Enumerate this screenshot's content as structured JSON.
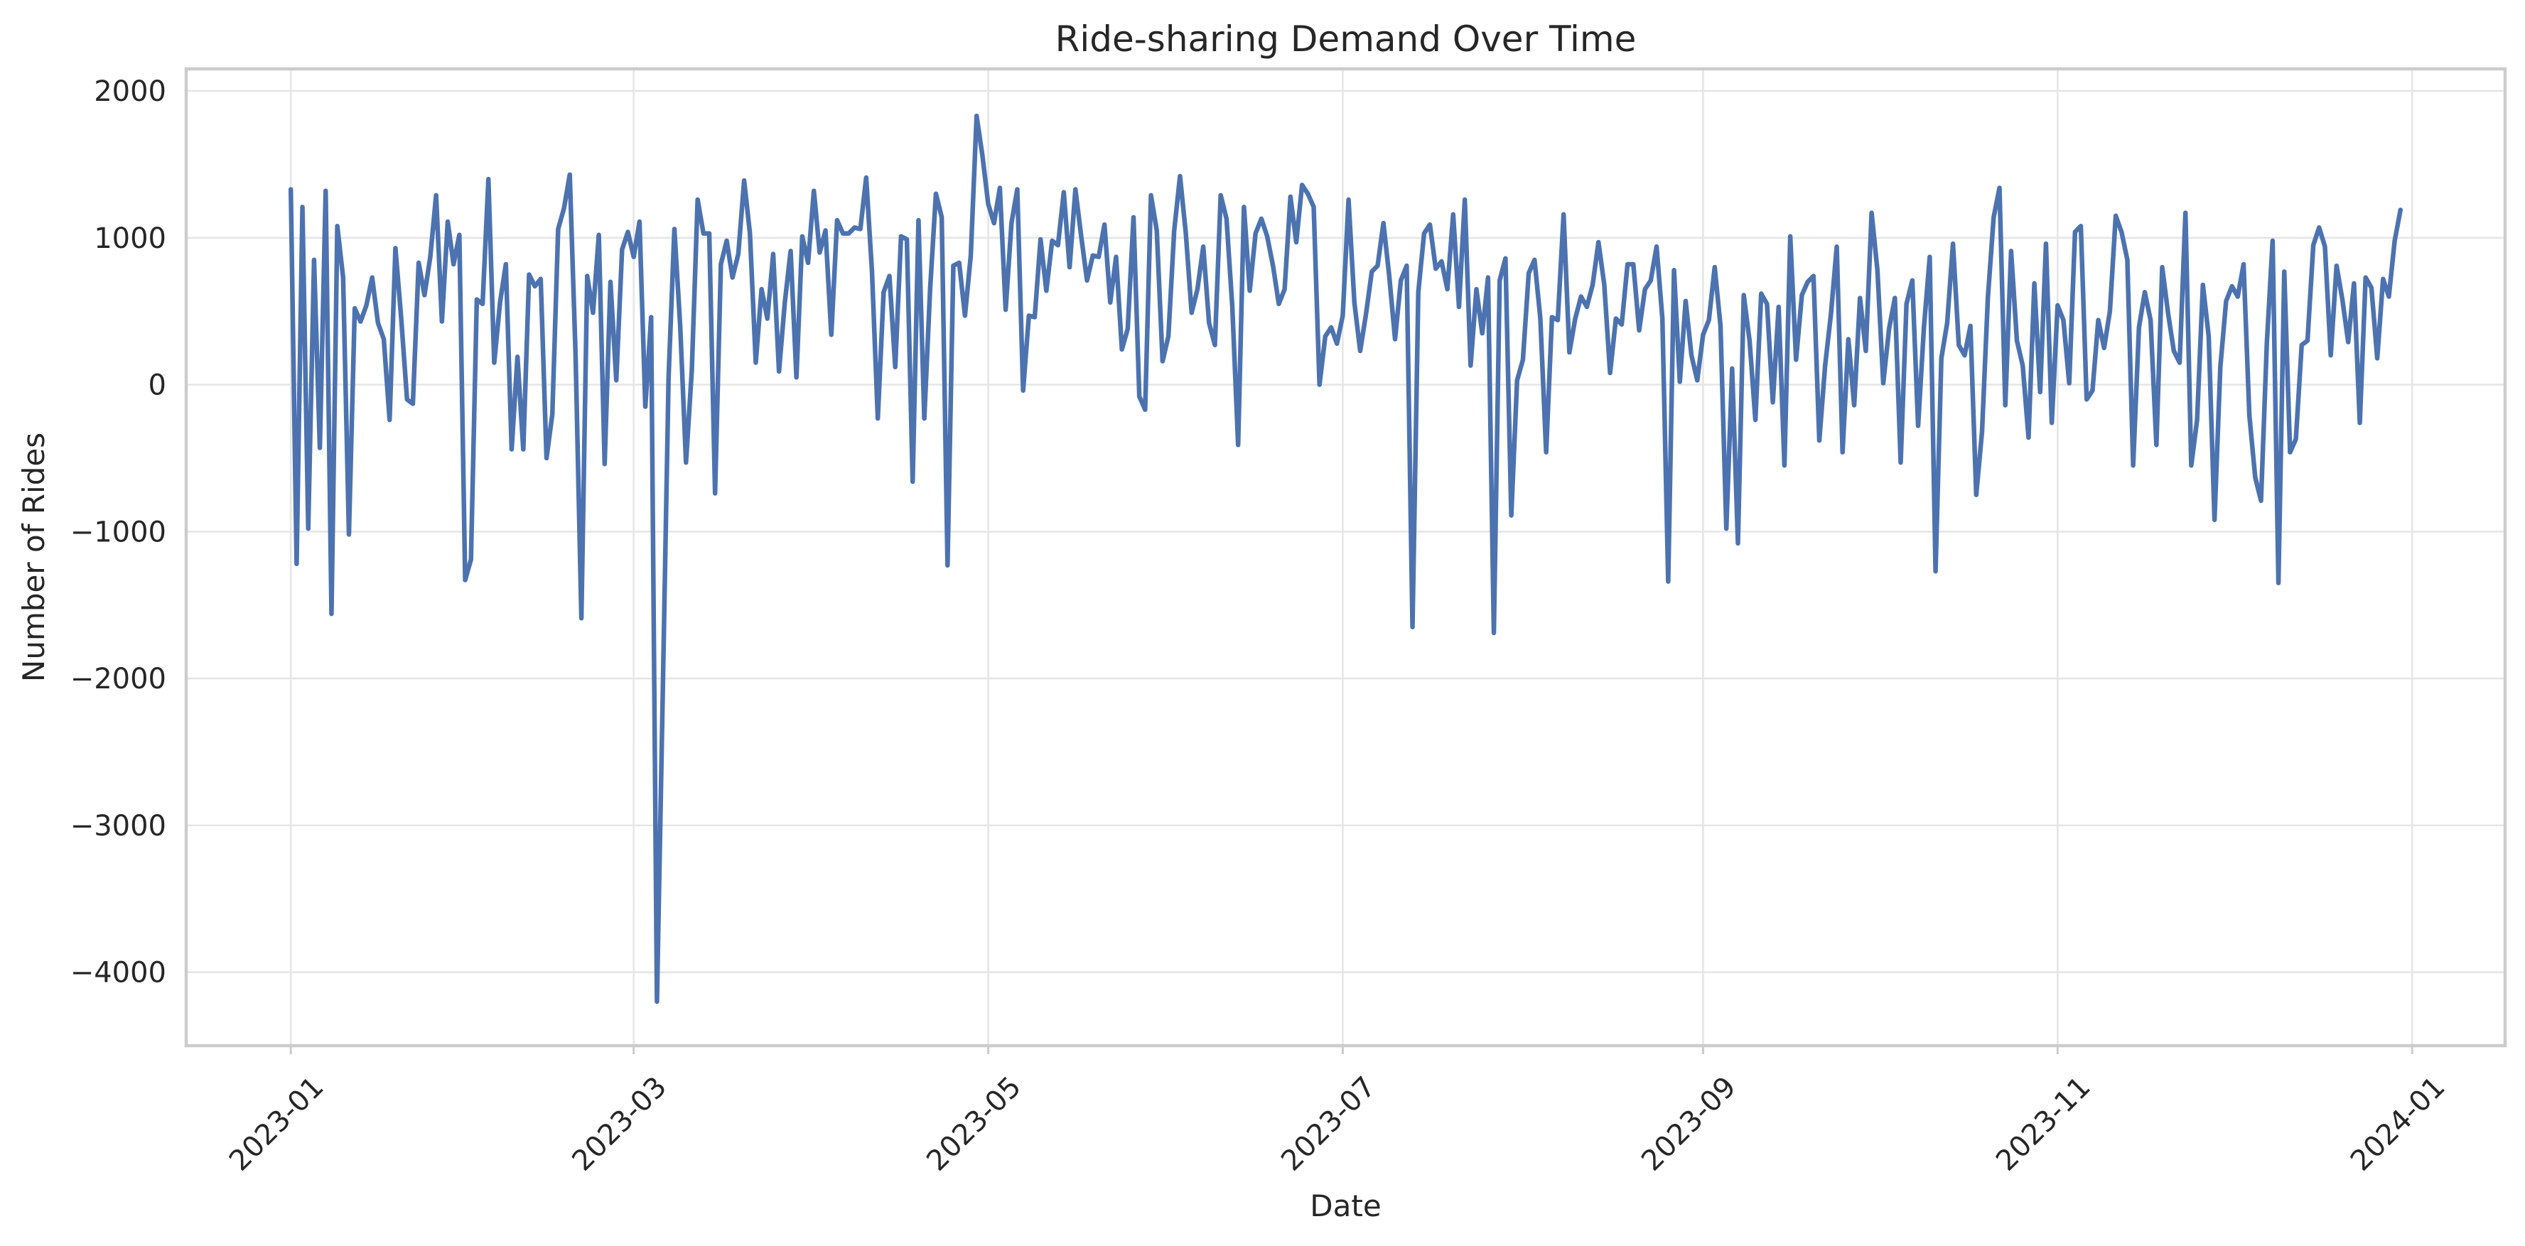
{
  "chart_data": {
    "type": "line",
    "title": "Ride-sharing Demand Over Time",
    "xlabel": "Date",
    "ylabel": "Number of Rides",
    "x_start": "2023-01-01",
    "x_end": "2023-12-31",
    "xlim": [
      "2022-12-14",
      "2024-01-17"
    ],
    "ylim": [
      -4500,
      2150
    ],
    "x_ticks": [
      {
        "value": "2023-01-01",
        "label": "2023-01"
      },
      {
        "value": "2023-03-01",
        "label": "2023-03"
      },
      {
        "value": "2023-05-01",
        "label": "2023-05"
      },
      {
        "value": "2023-07-01",
        "label": "2023-07"
      },
      {
        "value": "2023-09-01",
        "label": "2023-09"
      },
      {
        "value": "2023-11-01",
        "label": "2023-11"
      },
      {
        "value": "2024-01-01",
        "label": "2024-01"
      }
    ],
    "y_ticks": [
      {
        "value": 2000,
        "label": "2000"
      },
      {
        "value": 1000,
        "label": "1000"
      },
      {
        "value": 0,
        "label": "0"
      },
      {
        "value": -1000,
        "label": "−1000"
      },
      {
        "value": -2000,
        "label": "−2000"
      },
      {
        "value": -3000,
        "label": "−3000"
      },
      {
        "value": -4000,
        "label": "−4000"
      }
    ],
    "grid": true,
    "x_tick_rotation": 45,
    "series": [
      {
        "color": "#4c72b0",
        "values": [
          1330,
          -1220,
          1210,
          -980,
          850,
          -430,
          1320,
          -1560,
          1080,
          730,
          -1020,
          520,
          430,
          540,
          730,
          420,
          310,
          -240,
          930,
          450,
          -100,
          -130,
          830,
          610,
          870,
          1290,
          430,
          1110,
          820,
          1020,
          -1330,
          -1190,
          580,
          550,
          1400,
          150,
          560,
          820,
          -440,
          190,
          -440,
          750,
          670,
          720,
          -500,
          -200,
          1060,
          1200,
          1430,
          200,
          -1590,
          740,
          490,
          1020,
          -540,
          700,
          30,
          920,
          1040,
          870,
          1110,
          -150,
          460,
          -4200,
          -2100,
          50,
          1060,
          400,
          -530,
          100,
          1260,
          1030,
          1030,
          -740,
          820,
          980,
          730,
          890,
          1390,
          1030,
          150,
          650,
          450,
          890,
          90,
          560,
          910,
          50,
          1010,
          830,
          1320,
          900,
          1050,
          340,
          1120,
          1030,
          1030,
          1070,
          1060,
          1410,
          770,
          -230,
          630,
          740,
          120,
          1010,
          990,
          -660,
          1120,
          -230,
          650,
          1300,
          1140,
          -1230,
          810,
          830,
          470,
          880,
          1830,
          1560,
          1230,
          1100,
          1340,
          510,
          1100,
          1330,
          -40,
          470,
          460,
          990,
          640,
          980,
          950,
          1310,
          800,
          1330,
          1010,
          710,
          880,
          870,
          1090,
          560,
          870,
          240,
          380,
          1140,
          -80,
          -170,
          1290,
          1050,
          160,
          330,
          1050,
          1420,
          1030,
          490,
          650,
          940,
          420,
          270,
          1290,
          1130,
          530,
          -410,
          1210,
          640,
          1030,
          1130,
          1010,
          810,
          550,
          650,
          1280,
          970,
          1360,
          1300,
          1210,
          0,
          330,
          390,
          280,
          470,
          1260,
          560,
          230,
          480,
          770,
          810,
          1100,
          740,
          310,
          710,
          810,
          -1650,
          630,
          1030,
          1090,
          790,
          840,
          650,
          1160,
          530,
          1260,
          130,
          650,
          350,
          730,
          -1690,
          710,
          860,
          -890,
          30,
          170,
          760,
          850,
          450,
          -460,
          460,
          440,
          1160,
          220,
          450,
          600,
          530,
          680,
          970,
          680,
          80,
          450,
          410,
          820,
          820,
          370,
          650,
          710,
          940,
          450,
          -1340,
          780,
          20,
          570,
          200,
          30,
          340,
          440,
          800,
          400,
          -980,
          110,
          -1080,
          610,
          300,
          -240,
          620,
          550,
          -120,
          530,
          -550,
          1010,
          170,
          610,
          700,
          740,
          -380,
          130,
          480,
          940,
          -460,
          310,
          -140,
          590,
          230,
          1170,
          780,
          10,
          380,
          590,
          -530,
          550,
          710,
          -280,
          390,
          870,
          -1270,
          180,
          420,
          960,
          270,
          200,
          400,
          -750,
          -320,
          590,
          1140,
          1340,
          -140,
          910,
          300,
          130,
          -360,
          690,
          -50,
          960,
          -260,
          540,
          440,
          10,
          1040,
          1080,
          -100,
          -40,
          440,
          250,
          500,
          1150,
          1040,
          850,
          -550,
          390,
          630,
          440,
          -410,
          800,
          490,
          230,
          150,
          1170,
          -550,
          -240,
          680,
          330,
          -920,
          120,
          570,
          670,
          600,
          820,
          -210,
          -630,
          -790,
          280,
          980,
          -1350,
          770,
          -460,
          -370,
          270,
          300,
          950,
          1070,
          940,
          200,
          810,
          580,
          290,
          690,
          -260,
          730,
          660,
          180,
          720,
          600,
          980,
          1190
        ]
      }
    ]
  }
}
